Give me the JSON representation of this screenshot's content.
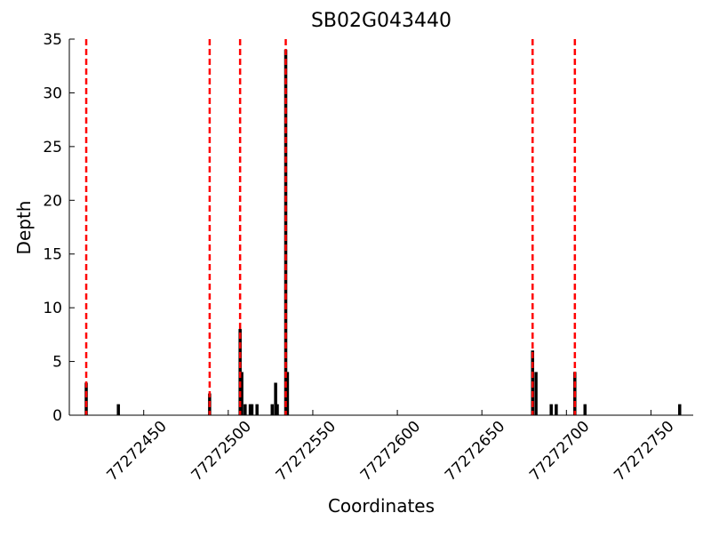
{
  "chart_data": {
    "type": "bar",
    "title": "SB02G043440",
    "x_label": "Coordinates",
    "y_label": "Depth",
    "x": [
      77272416,
      77272435,
      77272489,
      77272507,
      77272508,
      77272510,
      77272513,
      77272514,
      77272517,
      77272526,
      77272528,
      77272529,
      77272534,
      77272535,
      77272680,
      77272682,
      77272691,
      77272694,
      77272705,
      77272711,
      77272767
    ],
    "values": [
      3,
      1,
      2,
      8,
      4,
      1,
      1,
      1,
      1,
      1,
      3,
      1,
      34,
      4,
      6,
      4,
      1,
      1,
      4,
      1,
      1
    ],
    "color": "#000000",
    "vlines": [
      77272416,
      77272489,
      77272507,
      77272534,
      77272680,
      77272705
    ],
    "vline_color": "#ff0000",
    "xlim": [
      77272406,
      77272775
    ],
    "xticks": [
      77272450,
      77272500,
      77272550,
      77272600,
      77272650,
      77272700,
      77272750
    ],
    "ylim": [
      0,
      35
    ],
    "yticks": [
      0,
      5,
      10,
      15,
      20,
      25,
      30,
      35
    ],
    "grid": false
  }
}
